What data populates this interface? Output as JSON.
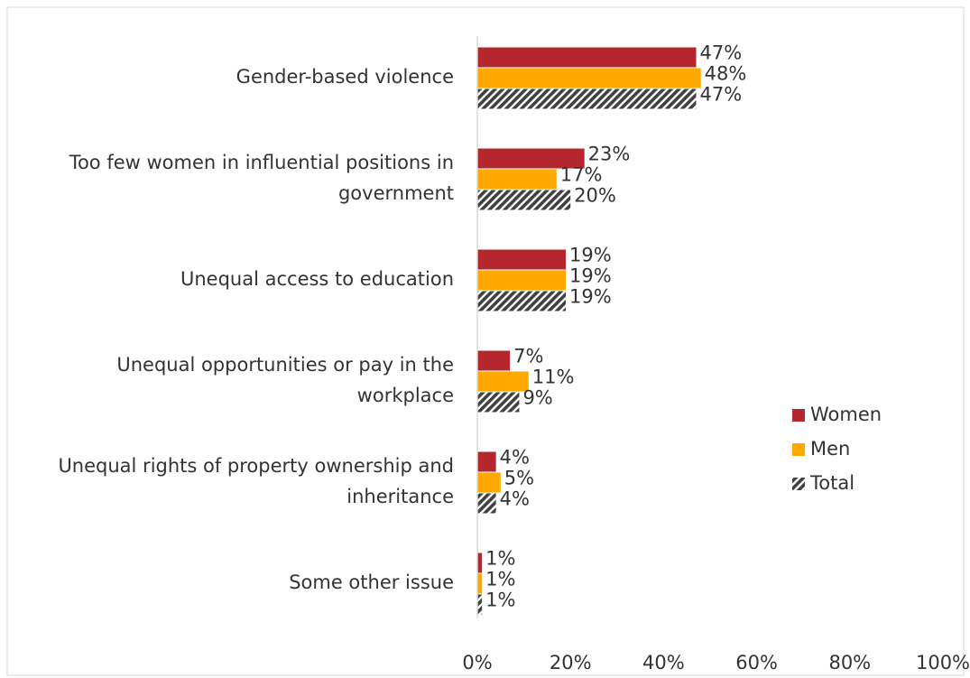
{
  "chart_data": {
    "type": "hbar",
    "categories": [
      "Gender-based violence",
      "Too few women in influential positions in government",
      "Unequal access to education",
      "Unequal opportunities or pay in the workplace",
      "Unequal rights of property ownership and inheritance",
      "Some other issue"
    ],
    "series": [
      {
        "name": "Women",
        "color": "#b5272d",
        "values": [
          47,
          23,
          19,
          7,
          4,
          1
        ],
        "value_labels": [
          "47%",
          "23%",
          "19%",
          "7%",
          "4%",
          "1%"
        ]
      },
      {
        "name": "Men",
        "color": "#ffa800",
        "values": [
          48,
          17,
          19,
          11,
          5,
          1
        ],
        "value_labels": [
          "48%",
          "17%",
          "19%",
          "11%",
          "5%",
          "1%"
        ]
      },
      {
        "name": "Total",
        "color": "#404040",
        "pattern": "hatch",
        "values": [
          47,
          20,
          19,
          9,
          4,
          1
        ],
        "value_labels": [
          "47%",
          "20%",
          "19%",
          "9%",
          "4%",
          "1%"
        ]
      }
    ],
    "xlim": [
      0,
      100
    ],
    "xticks": [
      {
        "value": 0,
        "label": "0%"
      },
      {
        "value": 20,
        "label": "20%"
      },
      {
        "value": 40,
        "label": "40%"
      },
      {
        "value": 60,
        "label": "60%"
      },
      {
        "value": 80,
        "label": "80%"
      },
      {
        "value": 100,
        "label": "100%"
      }
    ],
    "grid": false,
    "legend": "right"
  }
}
